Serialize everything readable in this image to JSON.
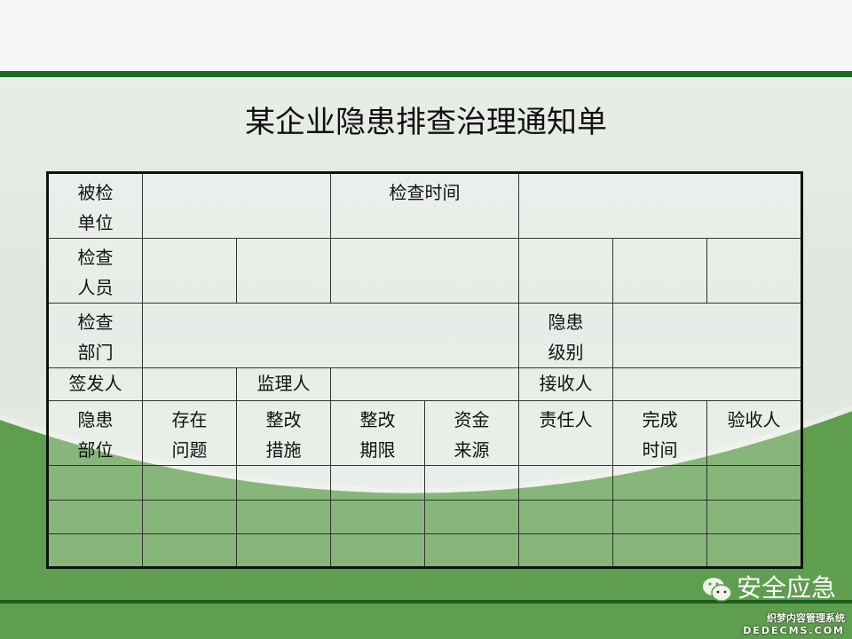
{
  "title": "某企业隐患排查治理通知单",
  "table": {
    "row1": {
      "c0": "被检\n单位",
      "c3": "检查时间"
    },
    "row2": {
      "c0": "检查\n人员"
    },
    "row3": {
      "c0": "检查\n部门",
      "c5": "隐患\n级别"
    },
    "row4": {
      "c0": "签发人",
      "c2": "监理人",
      "c5": "接收人"
    },
    "headers": [
      "隐患\n部位",
      "存在\n问题",
      "整改\n措施",
      "整改\n期限",
      "资金\n来源",
      "责任人",
      "完成\n时间",
      "验收人"
    ]
  },
  "watermark": {
    "brand": "安全应急",
    "site_cn": "织梦内容管理系统",
    "site_en": "DEDECMS.COM",
    "icon": "wechat-icon"
  },
  "colors": {
    "green": "#5f9e4f",
    "dark_green": "#1f6b1f"
  }
}
